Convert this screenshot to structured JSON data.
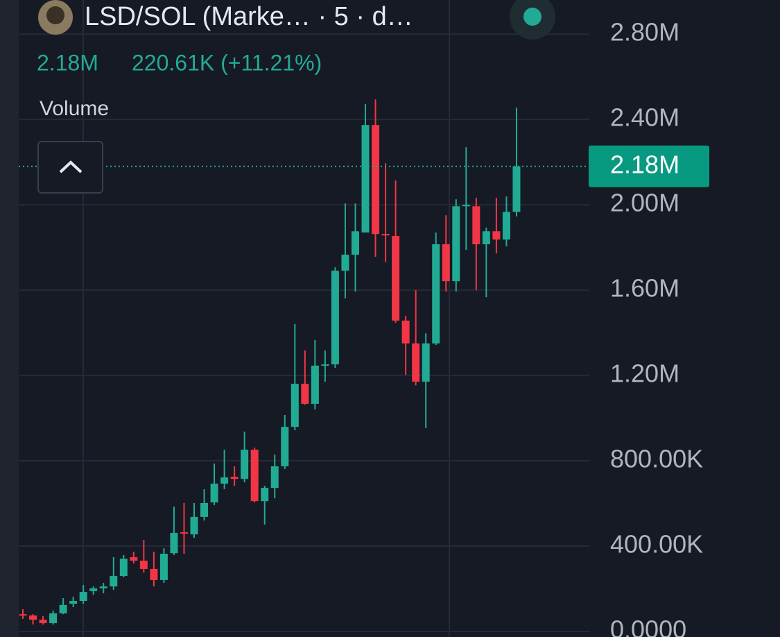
{
  "chart_data": {
    "type": "candlestick",
    "title": "LSD/SOL (Marke… · 5 · d…",
    "price": "2.18M",
    "change": "220.61K (+11.21%)",
    "indicator": "Volume",
    "last_price": {
      "value": 2180000,
      "label": "2.18M"
    },
    "up_color": "#22ab94",
    "down_color": "#f23645",
    "ylim": [
      -26000,
      2960000
    ],
    "yticks": [
      {
        "value": 0,
        "label": "0.0000"
      },
      {
        "value": 400000,
        "label": "400.00K"
      },
      {
        "value": 800000,
        "label": "800.00K"
      },
      {
        "value": 1200000,
        "label": "1.20M"
      },
      {
        "value": 1600000,
        "label": "1.60M"
      },
      {
        "value": 2000000,
        "label": "2.00M"
      },
      {
        "value": 2400000,
        "label": "2.40M"
      },
      {
        "value": 2800000,
        "label": "2.80M"
      }
    ],
    "grid": true,
    "series": {
      "open": [
        81000,
        75000,
        55000,
        39000,
        85000,
        130000,
        143000,
        189000,
        202000,
        211000,
        260000,
        348000,
        332000,
        293000,
        241000,
        367000,
        465000,
        455000,
        537000,
        605000,
        693000,
        725000,
        715000,
        852000,
        611000,
        673000,
        774000,
        959000,
        1161000,
        1067000,
        1246000,
        1252000,
        1691000,
        1766000,
        1870000,
        2374000,
        1863000,
        1854000,
        1457000,
        1350000,
        1171000,
        1350000,
        1815000,
        1642000,
        1993000,
        1993000,
        1815000,
        1876000,
        1837000,
        1967000
      ],
      "high": [
        104000,
        81000,
        72000,
        98000,
        156000,
        163000,
        218000,
        211000,
        228000,
        348000,
        358000,
        374000,
        429000,
        374000,
        390000,
        585000,
        602000,
        602000,
        667000,
        787000,
        852000,
        774000,
        937000,
        862000,
        683000,
        829000,
        1015000,
        1441000,
        1317000,
        1366000,
        1317000,
        1707000,
        2006000,
        2006000,
        2472000,
        2494000,
        2195000,
        2114000,
        1480000,
        1600000,
        1398000,
        1870000,
        1951000,
        2026000,
        2270000,
        2033000,
        1893000,
        2033000,
        2039000,
        2455000
      ],
      "low": [
        59000,
        33000,
        33000,
        33000,
        81000,
        114000,
        130000,
        172000,
        179000,
        195000,
        254000,
        319000,
        276000,
        211000,
        228000,
        358000,
        364000,
        439000,
        520000,
        592000,
        667000,
        683000,
        699000,
        605000,
        501000,
        624000,
        761000,
        943000,
        1063000,
        1041000,
        1171000,
        1236000,
        1561000,
        1593000,
        1870000,
        1756000,
        1730000,
        1447000,
        1203000,
        1154000,
        953000,
        1343000,
        1593000,
        1593000,
        1789000,
        1600000,
        1567000,
        1772000,
        1805000,
        1945000
      ],
      "close": [
        75000,
        55000,
        39000,
        85000,
        124000,
        143000,
        185000,
        202000,
        211000,
        260000,
        341000,
        332000,
        293000,
        241000,
        364000,
        462000,
        462000,
        537000,
        602000,
        693000,
        722000,
        715000,
        852000,
        611000,
        673000,
        774000,
        959000,
        1161000,
        1067000,
        1246000,
        1252000,
        1691000,
        1766000,
        1876000,
        2374000,
        1863000,
        1860000,
        1457000,
        1350000,
        1171000,
        1350000,
        1815000,
        1642000,
        1993000,
        2000000,
        1815000,
        1876000,
        1837000,
        1967000,
        2180000
      ]
    }
  }
}
